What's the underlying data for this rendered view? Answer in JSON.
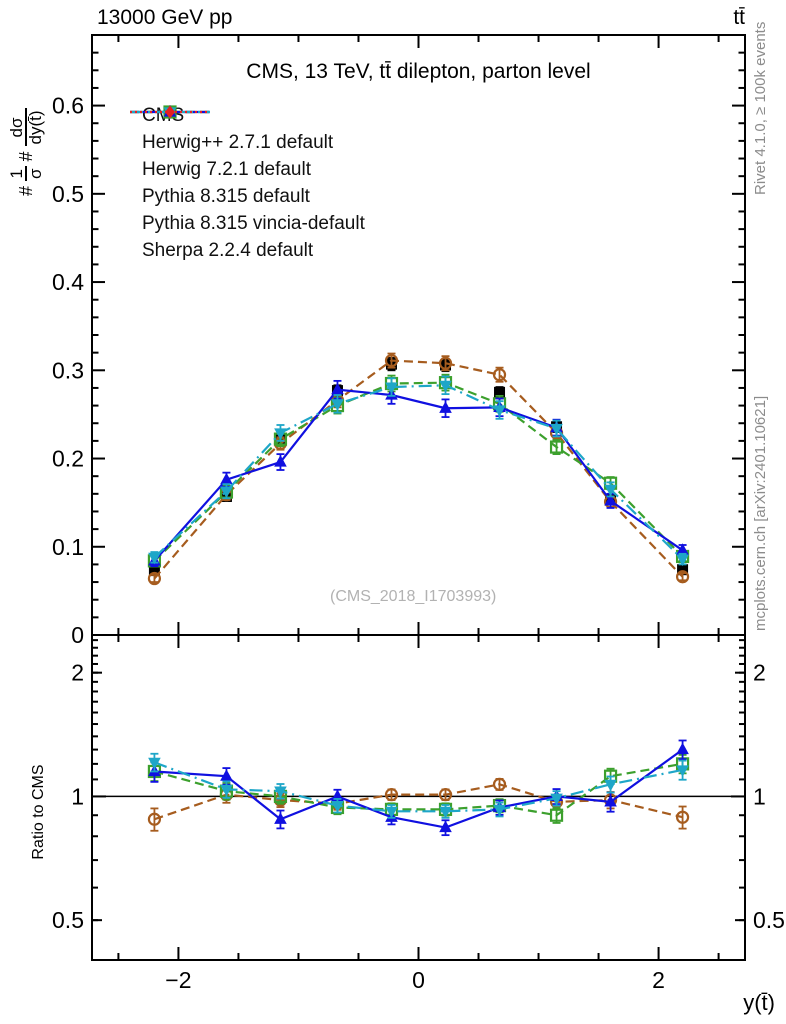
{
  "header": {
    "beam": "13000 GeV pp",
    "process": "tt̄"
  },
  "panel_title": "CMS, 13 TeV, tt̄ dilepton, parton level",
  "watermark": "(CMS_2018_I1703993)",
  "right_margin": {
    "top": "Rivet 4.1.0, ≥ 100k events",
    "bottom": "mcplots.cern.ch [arXiv:2401.10621]"
  },
  "axes": {
    "x": {
      "label": "y(t̄)",
      "min": -2.72,
      "max": 2.72,
      "major_ticks": [
        -2,
        0,
        2
      ],
      "minor_step": 0.5
    },
    "y_main": {
      "min": 0,
      "max": 0.68,
      "major_step": 0.1,
      "minor_step": 0.02,
      "labeled_ticks": [
        0,
        0.1,
        0.2,
        0.3,
        0.4,
        0.5,
        0.6
      ],
      "label_parts": {
        "hash1": "#",
        "num1": "1",
        "den1": "σ",
        "hash2": "#",
        "num2": "dσ",
        "den2": "dy(t̄)"
      }
    },
    "y_ratio": {
      "label": "Ratio to CMS",
      "min": 0.4,
      "max": 2.47,
      "scale": "log",
      "labeled_ticks": [
        0.5,
        1,
        2
      ],
      "reference_line": 1
    }
  },
  "series_styles": {
    "cms": {
      "color": "#000000",
      "marker": "square-filled",
      "line": "none"
    },
    "herwigpp": {
      "color": "#a65c1e",
      "marker": "circle-open",
      "line": "dashed"
    },
    "herwig7": {
      "color": "#3ca02d",
      "marker": "square-open",
      "line": "dashed"
    },
    "pythia": {
      "color": "#1010e0",
      "marker": "triangle-up-filled",
      "line": "solid"
    },
    "vincia": {
      "color": "#1ea6c8",
      "marker": "triangle-down-filled",
      "line": "dashdot"
    },
    "sherpa": {
      "color": "#e62020",
      "marker": "diamond-filled",
      "line": "dotted"
    }
  },
  "legend": [
    {
      "series": "cms",
      "label": "CMS"
    },
    {
      "series": "herwigpp",
      "label": "Herwig++ 2.7.1 default"
    },
    {
      "series": "herwig7",
      "label": "Herwig 7.2.1 default"
    },
    {
      "series": "pythia",
      "label": "Pythia 8.315 default"
    },
    {
      "series": "vincia",
      "label": "Pythia 8.315 vincia-default"
    },
    {
      "series": "sherpa",
      "label": "Sherpa 2.2.4 default"
    }
  ],
  "chart_data": [
    {
      "type": "scatter",
      "panel": "main",
      "title": "CMS, 13 TeV, tt̄ dilepton, parton level",
      "xlabel": "y(t̄)",
      "ylabel": "1/σ dσ/dy(t̄)",
      "xlim": [
        -2.72,
        2.72
      ],
      "ylim": [
        0,
        0.68
      ],
      "grid": false,
      "legend_position": "upper-left",
      "x": [
        -2.2,
        -1.6,
        -1.15,
        -0.675,
        -0.225,
        0.225,
        0.675,
        1.15,
        1.6,
        2.2
      ],
      "series": [
        {
          "name": "cms",
          "values": [
            0.073,
            0.157,
            0.222,
            0.277,
            0.307,
            0.306,
            0.275,
            0.236,
            0.154,
            0.074
          ],
          "yerr": [
            0.004,
            0.005,
            0.006,
            0.006,
            0.007,
            0.007,
            0.006,
            0.006,
            0.005,
            0.004
          ]
        },
        {
          "name": "herwigpp",
          "values": [
            0.064,
            0.159,
            0.217,
            0.266,
            0.311,
            0.308,
            0.295,
            0.229,
            0.151,
            0.066
          ],
          "yerr": [
            0.004,
            0.006,
            0.007,
            0.008,
            0.008,
            0.008,
            0.008,
            0.007,
            0.006,
            0.004
          ]
        },
        {
          "name": "herwig7",
          "values": [
            0.084,
            0.162,
            0.222,
            0.26,
            0.285,
            0.286,
            0.262,
            0.213,
            0.172,
            0.089
          ],
          "yerr": [
            0.005,
            0.007,
            0.008,
            0.009,
            0.009,
            0.009,
            0.009,
            0.008,
            0.007,
            0.005
          ]
        },
        {
          "name": "pythia",
          "values": [
            0.084,
            0.176,
            0.196,
            0.278,
            0.272,
            0.257,
            0.258,
            0.235,
            0.152,
            0.096
          ],
          "yerr": [
            0.006,
            0.008,
            0.009,
            0.01,
            0.01,
            0.01,
            0.01,
            0.009,
            0.008,
            0.006
          ]
        },
        {
          "name": "vincia",
          "values": [
            0.088,
            0.163,
            0.229,
            0.262,
            0.281,
            0.283,
            0.255,
            0.234,
            0.165,
            0.086
          ],
          "yerr": [
            0.006,
            0.008,
            0.009,
            0.01,
            0.01,
            0.01,
            0.01,
            0.009,
            0.008,
            0.006
          ]
        },
        {
          "name": "sherpa",
          "values": null,
          "yerr": null
        }
      ]
    },
    {
      "type": "scatter",
      "panel": "ratio",
      "ylabel": "Ratio to CMS",
      "xlim": [
        -2.72,
        2.72
      ],
      "ylim": [
        0.4,
        2.47
      ],
      "yscale": "log",
      "reference_line": 1,
      "x": [
        -2.2,
        -1.6,
        -1.15,
        -0.675,
        -0.225,
        0.225,
        0.675,
        1.15,
        1.6,
        2.2
      ],
      "series": [
        {
          "name": "herwigpp",
          "values": [
            0.88,
            1.01,
            0.98,
            0.96,
            1.01,
            1.01,
            1.07,
            0.97,
            0.98,
            0.89
          ],
          "yerr": [
            0.055,
            0.045,
            0.038,
            0.032,
            0.03,
            0.03,
            0.033,
            0.036,
            0.045,
            0.055
          ]
        },
        {
          "name": "herwig7",
          "values": [
            1.15,
            1.03,
            1.0,
            0.94,
            0.93,
            0.93,
            0.95,
            0.9,
            1.12,
            1.2
          ],
          "yerr": [
            0.06,
            0.048,
            0.04,
            0.035,
            0.032,
            0.032,
            0.035,
            0.038,
            0.048,
            0.062
          ]
        },
        {
          "name": "pythia",
          "values": [
            1.15,
            1.12,
            0.88,
            1.0,
            0.89,
            0.84,
            0.94,
            1.0,
            0.97,
            1.3
          ],
          "yerr": [
            0.065,
            0.052,
            0.044,
            0.038,
            0.035,
            0.035,
            0.038,
            0.042,
            0.052,
            0.068
          ]
        },
        {
          "name": "vincia",
          "values": [
            1.21,
            1.04,
            1.03,
            0.95,
            0.92,
            0.92,
            0.93,
            0.99,
            1.07,
            1.16
          ],
          "yerr": [
            0.06,
            0.048,
            0.042,
            0.036,
            0.033,
            0.033,
            0.036,
            0.04,
            0.048,
            0.062
          ]
        }
      ]
    }
  ]
}
